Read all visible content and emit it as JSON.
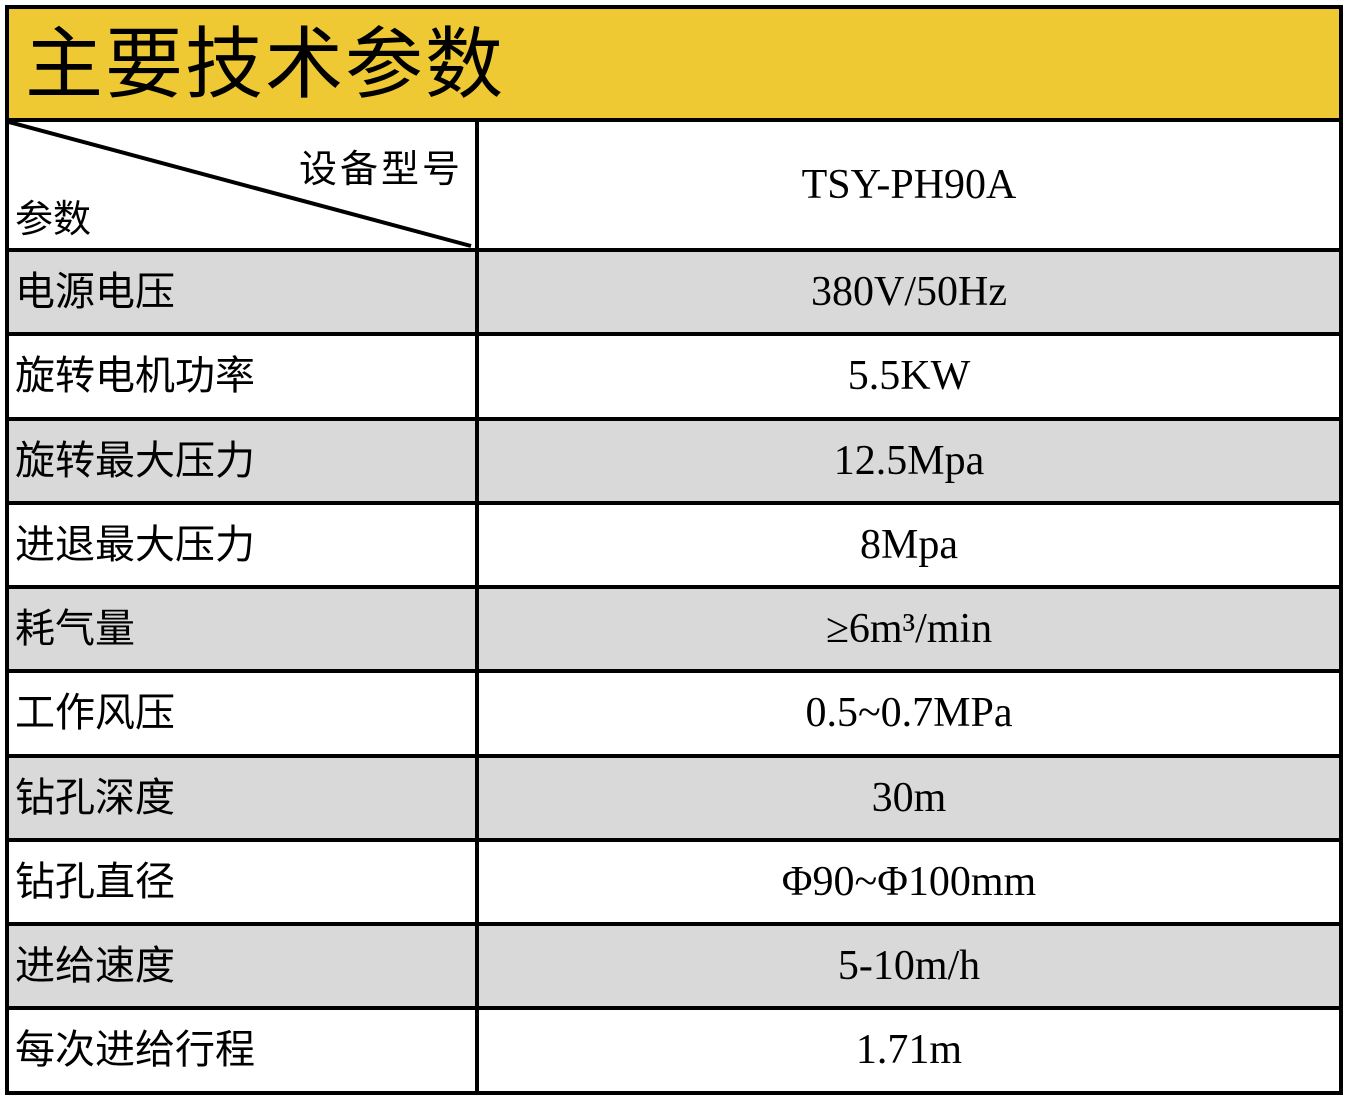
{
  "title": "主要技术参数",
  "header": {
    "model_label": "设备型号",
    "param_label": "参数",
    "model_value": "TSY-PH90A"
  },
  "colors": {
    "title_bg": "#EEC933",
    "stripe": "#D9D9D9",
    "border": "#000000"
  },
  "rows": [
    {
      "param": "电源电压",
      "value": "380V/50Hz"
    },
    {
      "param": "旋转电机功率",
      "value": "5.5KW"
    },
    {
      "param": "旋转最大压力",
      "value": "12.5Mpa"
    },
    {
      "param": "进退最大压力",
      "value": "8Mpa"
    },
    {
      "param": "耗气量",
      "value": "≥6m³/min"
    },
    {
      "param": "工作风压",
      "value": "0.5~0.7MPa"
    },
    {
      "param": "钻孔深度",
      "value": "30m"
    },
    {
      "param": "钻孔直径",
      "value": "Φ90~Φ100mm"
    },
    {
      "param": "进给速度",
      "value": "5-10m/h"
    },
    {
      "param": "每次进给行程",
      "value": "1.71m"
    }
  ]
}
